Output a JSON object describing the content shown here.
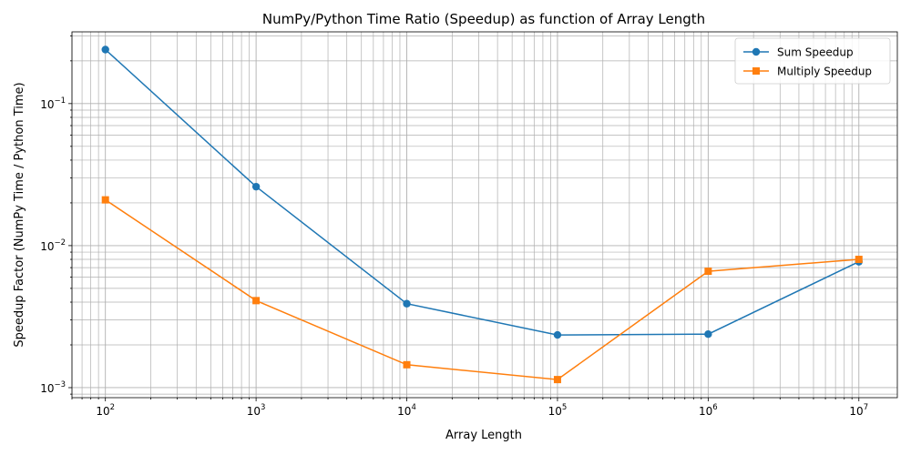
{
  "chart_data": {
    "type": "line",
    "title": "NumPy/Python Time Ratio (Speedup) as function of Array Length",
    "xlabel": "Array Length",
    "ylabel": "Speedup Factor (NumPy Time / Python Time)",
    "x_scale": "log",
    "y_scale": "log",
    "xlim": [
      60,
      18000000
    ],
    "ylim": [
      0.00085,
      0.32
    ],
    "grid": true,
    "legend_position": "top-right",
    "x_ticks": [
      {
        "value": 100,
        "base": "10",
        "exp": "2"
      },
      {
        "value": 1000,
        "base": "10",
        "exp": "3"
      },
      {
        "value": 10000,
        "base": "10",
        "exp": "4"
      },
      {
        "value": 100000,
        "base": "10",
        "exp": "5"
      },
      {
        "value": 1000000,
        "base": "10",
        "exp": "6"
      },
      {
        "value": 10000000,
        "base": "10",
        "exp": "7"
      }
    ],
    "y_ticks": [
      {
        "value": 0.001,
        "base": "10",
        "exp": "−3"
      },
      {
        "value": 0.01,
        "base": "10",
        "exp": "−2"
      },
      {
        "value": 0.1,
        "base": "10",
        "exp": "−1"
      }
    ],
    "x": [
      100,
      1000,
      10000,
      100000,
      1000000,
      10000000
    ],
    "series": [
      {
        "name": "Sum Speedup",
        "color": "#1f77b4",
        "marker": "circle",
        "values": [
          0.24,
          0.026,
          0.0039,
          0.00235,
          0.00238,
          0.0077
        ]
      },
      {
        "name": "Multiply Speedup",
        "color": "#ff7f0e",
        "marker": "square",
        "values": [
          0.021,
          0.0041,
          0.00145,
          0.00114,
          0.0066,
          0.008
        ]
      }
    ]
  }
}
